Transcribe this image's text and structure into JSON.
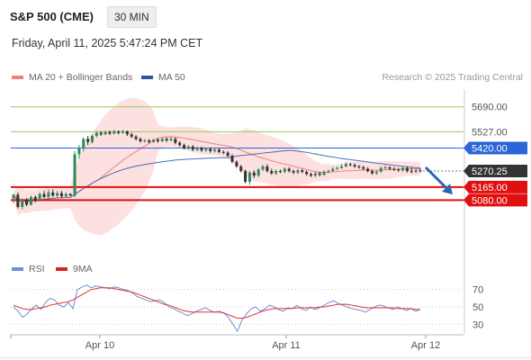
{
  "header": {
    "instrument": "S&P 500 (CME)",
    "interval": "30 MIN",
    "datetime": "Friday, April 11, 2025 5:47:24 PM CET"
  },
  "legend": {
    "ma20_bb": "MA 20 + Bollinger Bands",
    "ma50": "MA 50",
    "credit": "Research © 2025 Trading Central",
    "rsi": "RSI",
    "rsi_ma": "9MA"
  },
  "colors": {
    "up_candle": "#2e8b57",
    "down_candle": "#333333",
    "bollinger_fill": "#fde0e0",
    "ma20": "#f08080",
    "ma50": "#4a6fb3",
    "resistance_green": "#9acd5a",
    "pivot_blue": "#2b65d9",
    "support_red": "#e01010",
    "arrow": "#2b65b0",
    "rsi": "#6f8fd8",
    "rsi_ma": "#dd3333"
  },
  "chart_data": [
    {
      "type": "candlestick",
      "title": "S&P 500 (CME) 30 MIN",
      "x_ticks": [
        "Apr 10",
        "Apr 11",
        "Apr 12"
      ],
      "ylim": [
        4870,
        5800
      ],
      "levels": [
        {
          "value": 5690.0,
          "label": "5690.00",
          "kind": "resistance"
        },
        {
          "value": 5527.0,
          "label": "5527.00",
          "kind": "resistance"
        },
        {
          "value": 5420.0,
          "label": "5420.00",
          "kind": "pivot"
        },
        {
          "value": 5165.0,
          "label": "5165.00",
          "kind": "support"
        },
        {
          "value": 5080.0,
          "label": "5080.00",
          "kind": "support"
        }
      ],
      "last_price": {
        "value": 5270.25,
        "label": "5270.25"
      },
      "forecast": "down",
      "candles": [
        [
          5090,
          5115,
          5060,
          5120
        ],
        [
          5115,
          5035,
          5025,
          5130
        ],
        [
          5035,
          5080,
          5020,
          5090
        ],
        [
          5080,
          5050,
          5040,
          5095
        ],
        [
          5050,
          5100,
          5045,
          5110
        ],
        [
          5100,
          5075,
          5065,
          5110
        ],
        [
          5075,
          5120,
          5070,
          5130
        ],
        [
          5120,
          5100,
          5090,
          5140
        ],
        [
          5100,
          5130,
          5095,
          5150
        ],
        [
          5130,
          5110,
          5100,
          5150
        ],
        [
          5110,
          5125,
          5100,
          5140
        ],
        [
          5125,
          5105,
          5095,
          5140
        ],
        [
          5105,
          5120,
          5100,
          5130
        ],
        [
          5120,
          5110,
          5105,
          5125
        ],
        [
          5110,
          5380,
          5100,
          5400
        ],
        [
          5380,
          5420,
          5350,
          5440
        ],
        [
          5420,
          5480,
          5400,
          5490
        ],
        [
          5480,
          5460,
          5440,
          5500
        ],
        [
          5460,
          5500,
          5450,
          5510
        ],
        [
          5500,
          5520,
          5490,
          5530
        ],
        [
          5520,
          5510,
          5500,
          5530
        ],
        [
          5510,
          5525,
          5505,
          5535
        ],
        [
          5525,
          5515,
          5505,
          5535
        ],
        [
          5515,
          5530,
          5510,
          5540
        ],
        [
          5530,
          5520,
          5510,
          5535
        ],
        [
          5520,
          5530,
          5515,
          5540
        ],
        [
          5530,
          5510,
          5500,
          5535
        ],
        [
          5510,
          5495,
          5485,
          5520
        ],
        [
          5495,
          5480,
          5470,
          5505
        ],
        [
          5480,
          5465,
          5455,
          5490
        ],
        [
          5465,
          5470,
          5455,
          5480
        ],
        [
          5470,
          5460,
          5450,
          5480
        ],
        [
          5460,
          5475,
          5455,
          5480
        ],
        [
          5475,
          5465,
          5455,
          5485
        ],
        [
          5465,
          5480,
          5460,
          5490
        ],
        [
          5480,
          5470,
          5460,
          5490
        ],
        [
          5470,
          5480,
          5465,
          5495
        ],
        [
          5480,
          5455,
          5445,
          5490
        ],
        [
          5455,
          5440,
          5430,
          5465
        ],
        [
          5440,
          5420,
          5410,
          5450
        ],
        [
          5420,
          5430,
          5410,
          5440
        ],
        [
          5430,
          5410,
          5400,
          5440
        ],
        [
          5410,
          5420,
          5400,
          5430
        ],
        [
          5420,
          5405,
          5395,
          5430
        ],
        [
          5405,
          5415,
          5395,
          5425
        ],
        [
          5415,
          5400,
          5390,
          5425
        ],
        [
          5400,
          5410,
          5390,
          5420
        ],
        [
          5410,
          5395,
          5385,
          5420
        ],
        [
          5395,
          5390,
          5380,
          5405
        ],
        [
          5390,
          5370,
          5360,
          5400
        ],
        [
          5370,
          5330,
          5320,
          5380
        ],
        [
          5330,
          5300,
          5290,
          5340
        ],
        [
          5300,
          5270,
          5260,
          5310
        ],
        [
          5270,
          5200,
          5190,
          5280
        ],
        [
          5200,
          5260,
          5180,
          5270
        ],
        [
          5260,
          5240,
          5225,
          5275
        ],
        [
          5240,
          5280,
          5230,
          5290
        ],
        [
          5280,
          5300,
          5270,
          5310
        ],
        [
          5300,
          5270,
          5260,
          5315
        ],
        [
          5270,
          5255,
          5245,
          5285
        ],
        [
          5255,
          5270,
          5245,
          5280
        ],
        [
          5270,
          5265,
          5255,
          5280
        ],
        [
          5265,
          5285,
          5255,
          5295
        ],
        [
          5285,
          5270,
          5260,
          5295
        ],
        [
          5270,
          5260,
          5250,
          5280
        ],
        [
          5260,
          5275,
          5250,
          5285
        ],
        [
          5275,
          5265,
          5255,
          5285
        ],
        [
          5265,
          5250,
          5240,
          5275
        ],
        [
          5250,
          5240,
          5230,
          5260
        ],
        [
          5240,
          5255,
          5230,
          5265
        ],
        [
          5255,
          5245,
          5235,
          5265
        ],
        [
          5245,
          5265,
          5240,
          5275
        ],
        [
          5265,
          5270,
          5255,
          5280
        ],
        [
          5270,
          5285,
          5265,
          5295
        ],
        [
          5285,
          5290,
          5275,
          5300
        ],
        [
          5290,
          5300,
          5285,
          5315
        ],
        [
          5300,
          5315,
          5295,
          5330
        ],
        [
          5315,
          5310,
          5300,
          5325
        ],
        [
          5310,
          5300,
          5290,
          5320
        ],
        [
          5300,
          5295,
          5285,
          5310
        ],
        [
          5295,
          5285,
          5275,
          5305
        ],
        [
          5285,
          5270,
          5260,
          5295
        ],
        [
          5270,
          5255,
          5245,
          5280
        ],
        [
          5255,
          5265,
          5245,
          5275
        ],
        [
          5265,
          5290,
          5260,
          5300
        ],
        [
          5290,
          5295,
          5280,
          5305
        ],
        [
          5295,
          5285,
          5275,
          5300
        ],
        [
          5285,
          5280,
          5270,
          5295
        ],
        [
          5280,
          5275,
          5265,
          5290
        ],
        [
          5275,
          5290,
          5265,
          5300
        ],
        [
          5290,
          5270,
          5260,
          5300
        ],
        [
          5270,
          5265,
          5255,
          5295
        ],
        [
          5265,
          5275,
          5255,
          5285
        ],
        [
          5275,
          5270,
          5260,
          5290
        ]
      ]
    },
    {
      "type": "line",
      "title": "RSI",
      "series": [
        {
          "name": "RSI",
          "values": [
            50,
            45,
            38,
            42,
            48,
            52,
            47,
            55,
            60,
            58,
            52,
            50,
            55,
            48,
            70,
            73,
            75,
            72,
            74,
            73,
            72,
            71,
            73,
            72,
            70,
            69,
            66,
            62,
            60,
            58,
            56,
            57,
            58,
            55,
            50,
            48,
            45,
            43,
            40,
            42,
            45,
            47,
            49,
            46,
            44,
            45,
            43,
            38,
            30,
            22,
            35,
            42,
            48,
            50,
            45,
            48,
            52,
            50,
            47,
            45,
            49,
            48,
            52,
            48,
            46,
            50,
            47,
            49,
            52,
            55,
            57,
            54,
            52,
            50,
            48,
            47,
            46,
            44,
            47,
            50,
            52,
            51,
            49,
            47,
            50,
            48,
            46,
            48,
            45,
            47
          ]
        },
        {
          "name": "9MA",
          "values": [
            52,
            50,
            48,
            47,
            47,
            48,
            49,
            50,
            52,
            53,
            54,
            55,
            56,
            58,
            61,
            64,
            67,
            70,
            71,
            72,
            72,
            72,
            71,
            70,
            69,
            68,
            67,
            65,
            63,
            61,
            59,
            57,
            55,
            53,
            52,
            50,
            48,
            46,
            45,
            44,
            44,
            44,
            44,
            44,
            44,
            44,
            43,
            41,
            39,
            37,
            37,
            38,
            40,
            42,
            44,
            46,
            47,
            48,
            48,
            48,
            48,
            48,
            49,
            49,
            49,
            49,
            49,
            50,
            50,
            51,
            52,
            53,
            53,
            53,
            52,
            51,
            50,
            49,
            49,
            49,
            49,
            49,
            49,
            49,
            48,
            48,
            48,
            48,
            47,
            47
          ]
        }
      ],
      "ylim": [
        20,
        80
      ],
      "y_ticks": [
        "70",
        "50",
        "30"
      ]
    }
  ]
}
